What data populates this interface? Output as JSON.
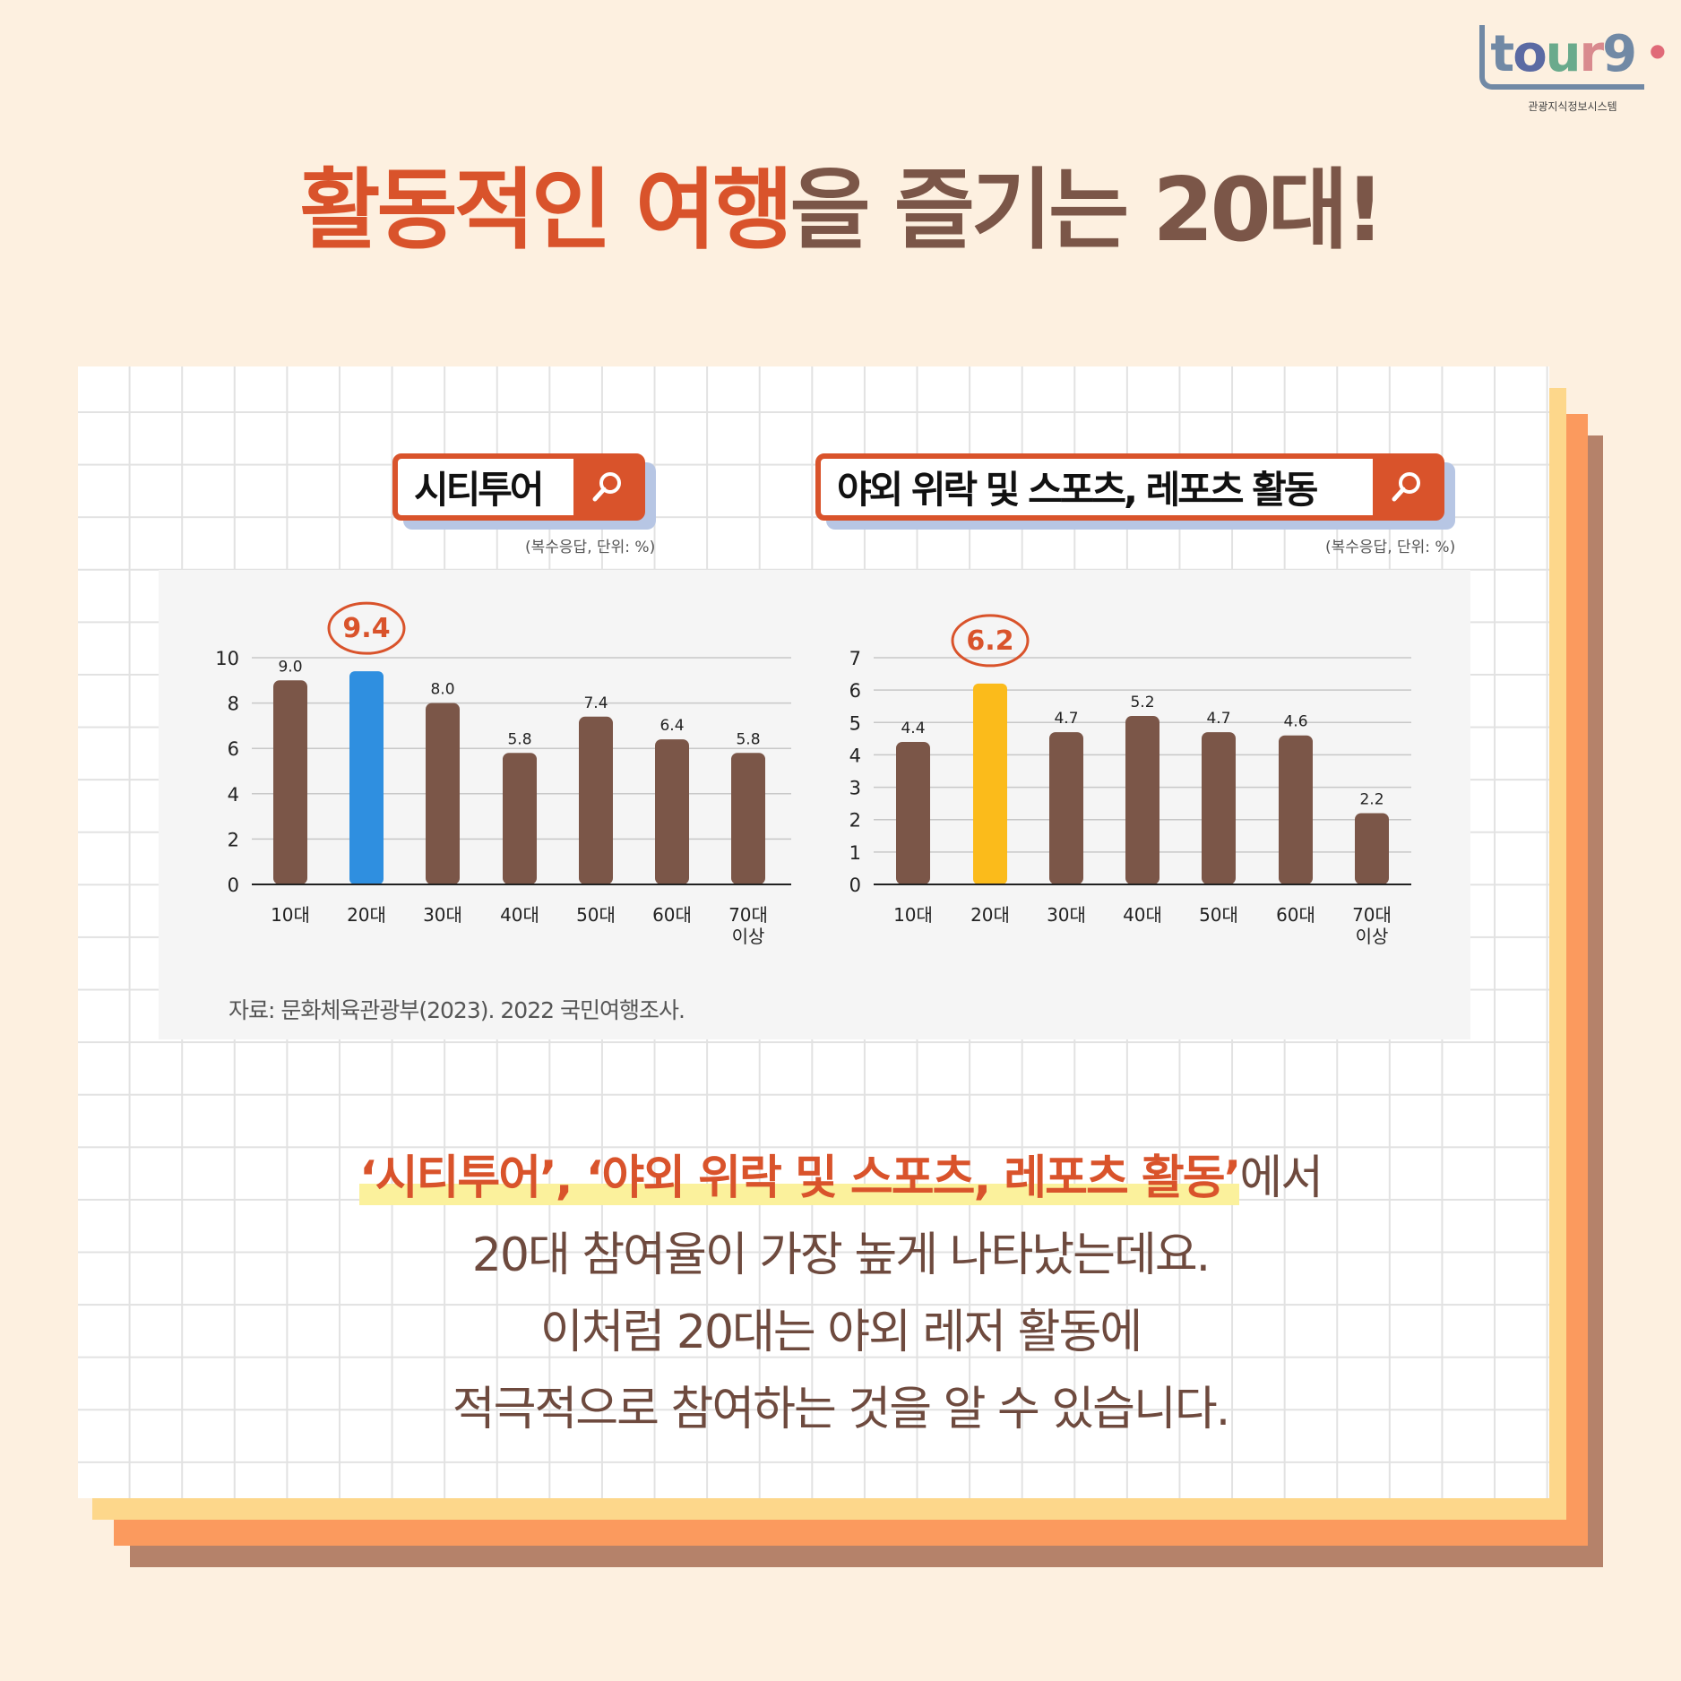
{
  "logo": {
    "t": "t",
    "o": "o",
    "u": "u",
    "r": "r",
    "g": "9",
    "subtitle": "관광지식정보시스템"
  },
  "title": {
    "highlight": "활동적인 여행",
    "rest": "을 즐기는 20대!"
  },
  "colors": {
    "accent": "#d9532b",
    "bar": "#7b5648",
    "highlight_bar_right": "#fbbb1b",
    "highlight_bar_left": "#2f8fe0",
    "background": "#fdf0e0"
  },
  "chart_data": [
    {
      "type": "bar",
      "title": "시티투어",
      "unit_note": "(복수응답, 단위: %)",
      "categories": [
        "10대",
        "20대",
        "30대",
        "40대",
        "50대",
        "60대",
        "70대 이상"
      ],
      "values": [
        9.0,
        9.4,
        8.0,
        5.8,
        7.4,
        6.4,
        5.8
      ],
      "ylim": [
        0,
        10
      ],
      "yticks": [
        0,
        2,
        4,
        6,
        8,
        10
      ],
      "highlight": "20대",
      "grid": true
    },
    {
      "type": "bar",
      "title": "야외 위락 및 스포츠, 레포츠 활동",
      "unit_note": "(복수응답, 단위: %)",
      "categories": [
        "10대",
        "20대",
        "30대",
        "40대",
        "50대",
        "60대",
        "70대 이상"
      ],
      "values": [
        4.4,
        6.2,
        4.7,
        5.2,
        4.7,
        4.6,
        2.2
      ],
      "ylim": [
        0,
        7
      ],
      "yticks": [
        0,
        1,
        2,
        3,
        4,
        5,
        6,
        7
      ],
      "highlight": "20대",
      "grid": true
    }
  ],
  "search_icon": "magnifier-icon",
  "source": "자료: 문화체육관광부(2023). 2022 국민여행조사.",
  "body": {
    "line1_highlight": "‘시티투어’, ‘야외 위락 및 스포츠, 레포츠 활동’",
    "line1_rest": "에서",
    "line2": "20대 참여율이 가장 높게 나타났는데요.",
    "line3": "이처럼 20대는 야외 레저 활동에",
    "line4": "적극적으로 참여하는 것을 알 수 있습니다."
  }
}
